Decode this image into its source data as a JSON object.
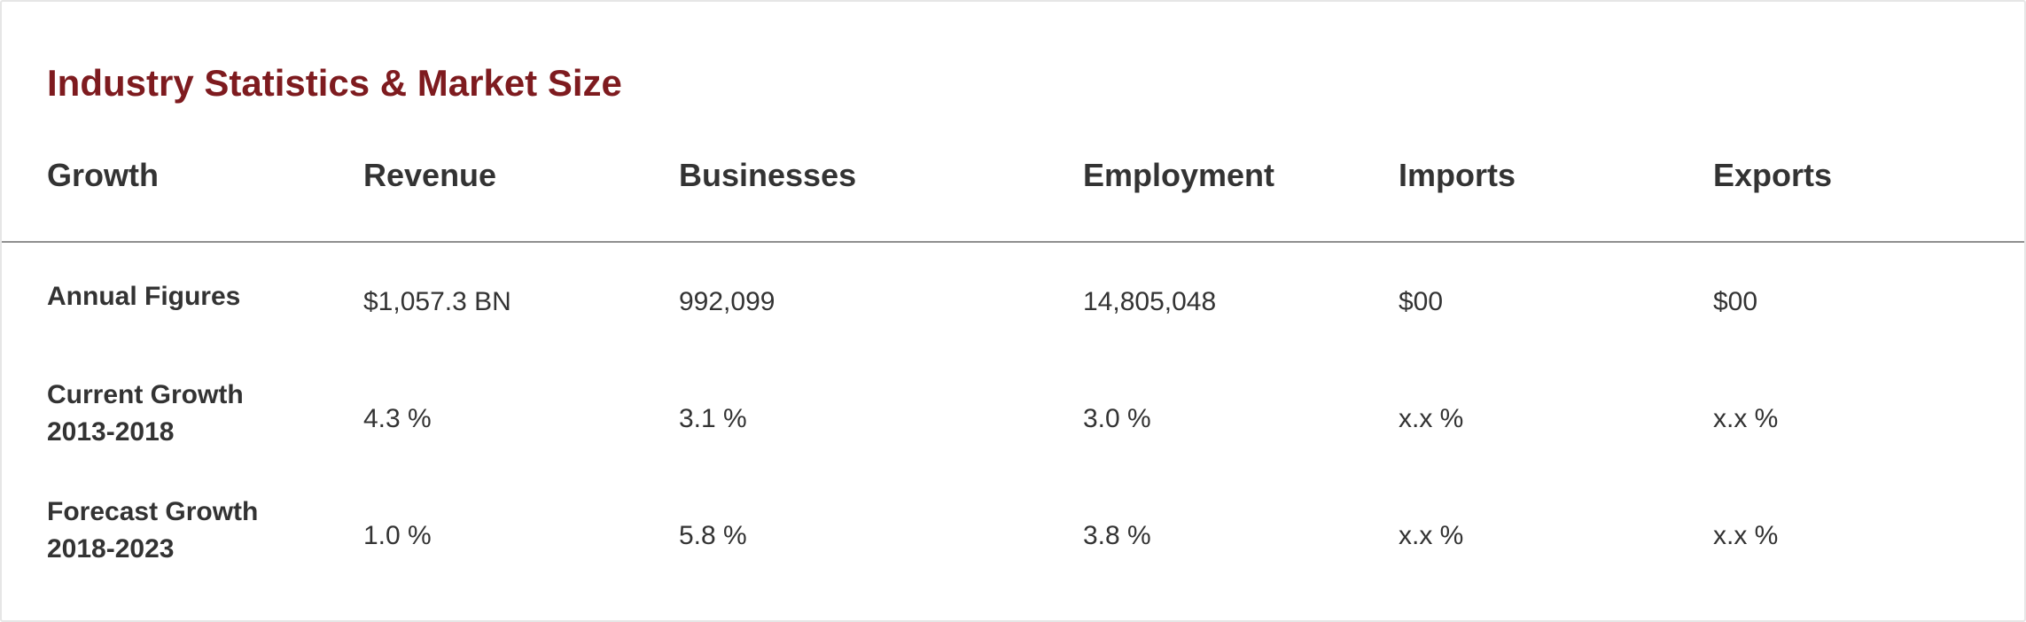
{
  "title": "Industry Statistics & Market Size",
  "colors": {
    "title": "#7e1b1f",
    "text": "#333333",
    "divider": "#8f8f8f"
  },
  "headers": [
    "Growth",
    "Revenue",
    "Businesses",
    "Employment",
    "Imports",
    "Exports"
  ],
  "rows": [
    {
      "label_line1": "Annual Figures",
      "label_line2": "",
      "values": [
        "$1,057.3 BN",
        "992,099",
        "14,805,048",
        "$00",
        "$00"
      ]
    },
    {
      "label_line1": "Current Growth",
      "label_line2": "2013-2018",
      "values": [
        "4.3 %",
        "3.1 %",
        "3.0 %",
        "x.x %",
        "x.x %"
      ]
    },
    {
      "label_line1": "Forecast Growth",
      "label_line2": "2018-2023",
      "values": [
        "1.0 %",
        "5.8 %",
        "3.8 %",
        "x.x %",
        "x.x %"
      ]
    }
  ]
}
